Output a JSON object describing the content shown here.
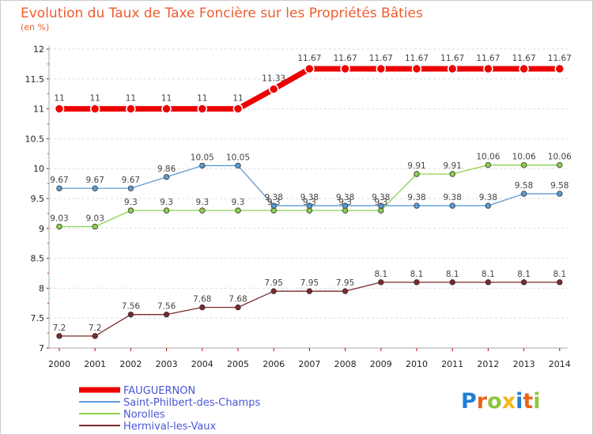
{
  "chart_data": {
    "type": "line",
    "title": "Evolution du Taux de Taxe Foncière sur les Propriétés Bâties",
    "subtitle": "(en %)",
    "x": [
      "2000",
      "2001",
      "2002",
      "2003",
      "2004",
      "2005",
      "2006",
      "2007",
      "2008",
      "2009",
      "2010",
      "2011",
      "2012",
      "2013",
      "2014"
    ],
    "y_ticks": [
      "7",
      "7.5",
      "8",
      "8.5",
      "9",
      "9.5",
      "10",
      "10.5",
      "11",
      "11.5",
      "12"
    ],
    "ylim": [
      7,
      12
    ],
    "grid": "horizontal dashed",
    "legend_position": "bottom-left",
    "series": [
      {
        "name": "FAUGUERNON",
        "color": "#ee0000",
        "values": [
          11,
          11,
          11,
          11,
          11,
          11,
          11.33,
          11.67,
          11.67,
          11.67,
          11.67,
          11.67,
          11.67,
          11.67,
          11.67
        ],
        "labels": [
          "11",
          "11",
          "11",
          "11",
          "11",
          "11",
          "11.33",
          "11.67",
          "11.67",
          "11.67",
          "11.67",
          "11.67",
          "11.67",
          "11.67",
          "11.67"
        ]
      },
      {
        "name": "Saint-Philbert-des-Champs",
        "color": "#5b9bd5",
        "values": [
          9.67,
          9.67,
          9.67,
          9.86,
          10.05,
          10.05,
          9.38,
          9.38,
          9.38,
          9.38,
          9.38,
          9.38,
          9.38,
          9.58,
          9.58
        ],
        "labels": [
          "9.67",
          "9.67",
          "9.67",
          "9.86",
          "10.05",
          "10.05",
          "9.38",
          "9.38",
          "9.38",
          "9.38",
          "9.38",
          "9.38",
          "9.38",
          "9.58",
          "9.58"
        ]
      },
      {
        "name": "Norolles",
        "color": "#8dd04a",
        "values": [
          9.03,
          9.03,
          9.3,
          9.3,
          9.3,
          9.3,
          9.3,
          9.3,
          9.3,
          9.3,
          9.91,
          9.91,
          10.06,
          10.06,
          10.06
        ],
        "labels": [
          "9.03",
          "9.03",
          "9.3",
          "9.3",
          "9.3",
          "9.3",
          "9.3",
          "9.3",
          "9.3",
          "9.3",
          "9.91",
          "9.91",
          "10.06",
          "10.06",
          "10.06"
        ]
      },
      {
        "name": "Hermival-les-Vaux",
        "color": "#7a2a2a",
        "values": [
          7.2,
          7.2,
          7.56,
          7.56,
          7.68,
          7.68,
          7.95,
          7.95,
          7.95,
          8.1,
          8.1,
          8.1,
          8.1,
          8.1,
          8.1
        ],
        "labels": [
          "7.2",
          "7.2",
          "7.56",
          "7.56",
          "7.68",
          "7.68",
          "7.95",
          "7.95",
          "7.95",
          "8.1",
          "8.1",
          "8.1",
          "8.1",
          "8.1",
          "8.1"
        ]
      }
    ]
  },
  "brand": {
    "letters": [
      "P",
      "r",
      "o",
      "x",
      "i",
      "t",
      "i"
    ],
    "colors": [
      "#1f7fd6",
      "#e8661c",
      "#8cc63f",
      "#f2b81a",
      "#1f7fd6",
      "#e8661c",
      "#8cc63f"
    ]
  }
}
